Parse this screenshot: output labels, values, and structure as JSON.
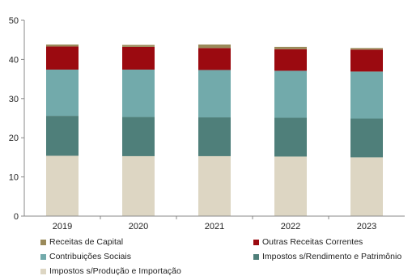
{
  "chart_data": {
    "type": "bar",
    "stacked": true,
    "title": "",
    "xlabel": "",
    "ylabel": "",
    "ylim": [
      0,
      50
    ],
    "yticks": [
      0,
      10,
      20,
      30,
      40,
      50
    ],
    "grid": false,
    "legend_position": "bottom",
    "categories": [
      "2019",
      "2020",
      "2021",
      "2022",
      "2023"
    ],
    "series": [
      {
        "name": "Impostos s/Produção e Importação",
        "color": "#ddd6c3",
        "values": [
          15.4,
          15.3,
          15.3,
          15.2,
          15.0
        ]
      },
      {
        "name": "Impostos s/Rendimento e Patrimônio",
        "color": "#4f7f7a",
        "values": [
          10.2,
          10.0,
          9.9,
          9.9,
          9.9
        ]
      },
      {
        "name": "Contribuições Sociais",
        "color": "#72aaab",
        "values": [
          11.8,
          12.1,
          12.1,
          12.0,
          12.0
        ]
      },
      {
        "name": "Outras Receitas Correntes",
        "color": "#9b0a10",
        "values": [
          5.9,
          5.8,
          5.6,
          5.5,
          5.6
        ]
      },
      {
        "name": "Receitas de Capital",
        "color": "#9a8a5a",
        "values": [
          0.5,
          0.5,
          0.9,
          0.6,
          0.4
        ]
      }
    ]
  }
}
